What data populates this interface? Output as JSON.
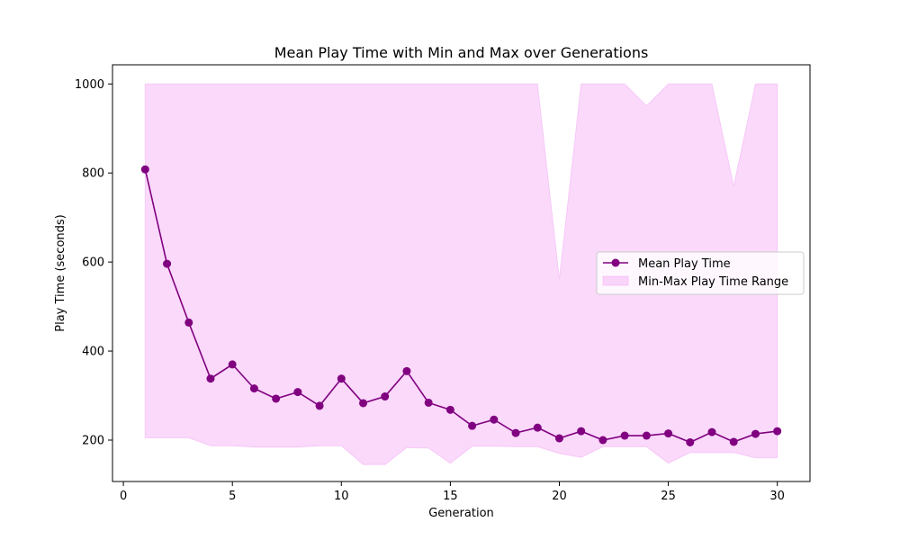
{
  "chart_data": {
    "type": "line",
    "title": "Mean Play Time with Min and Max over Generations",
    "xlabel": "Generation",
    "ylabel": "Play Time (seconds)",
    "xlim": [
      -0.5,
      31.5
    ],
    "ylim": [
      107,
      1043
    ],
    "xticks": [
      0,
      5,
      10,
      15,
      20,
      25,
      30
    ],
    "yticks": [
      200,
      400,
      600,
      800,
      1000
    ],
    "legend_position": "center-right",
    "x": [
      1,
      2,
      3,
      4,
      5,
      6,
      7,
      8,
      9,
      10,
      11,
      12,
      13,
      14,
      15,
      16,
      17,
      18,
      19,
      20,
      21,
      22,
      23,
      24,
      25,
      26,
      27,
      28,
      29,
      30
    ],
    "series": [
      {
        "name": "Mean Play Time",
        "kind": "line-marker",
        "color": "#800080",
        "values": [
          808,
          596,
          464,
          338,
          370,
          316,
          293,
          308,
          277,
          338,
          283,
          298,
          355,
          284,
          268,
          232,
          246,
          216,
          228,
          204,
          220,
          200,
          210,
          210,
          215,
          195,
          218,
          196,
          214,
          220
        ]
      },
      {
        "name": "Min-Max Play Time Range",
        "kind": "band",
        "color": "#ee82ee",
        "min": [
          205,
          205,
          205,
          187,
          187,
          184,
          184,
          184,
          187,
          187,
          145,
          145,
          183,
          182,
          148,
          186,
          186,
          185,
          185,
          170,
          161,
          185,
          185,
          185,
          148,
          172,
          172,
          172,
          160,
          160
        ],
        "max": [
          1000,
          1000,
          1000,
          1000,
          1000,
          1000,
          1000,
          1000,
          1000,
          1000,
          1000,
          1000,
          1000,
          1000,
          1000,
          1000,
          1000,
          1000,
          1000,
          562,
          1000,
          1000,
          1000,
          951,
          1000,
          1000,
          1000,
          771,
          1000,
          1000
        ]
      }
    ]
  }
}
